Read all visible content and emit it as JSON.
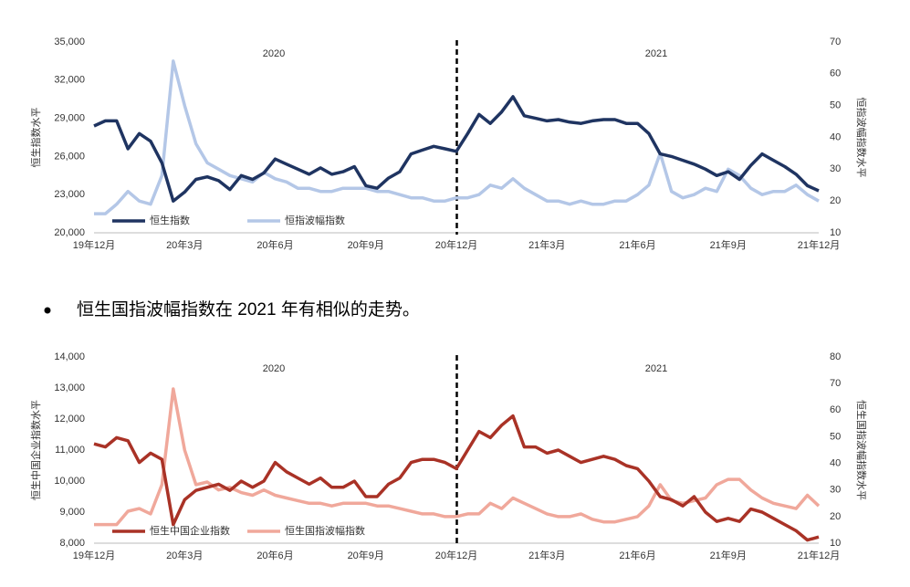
{
  "chart_data": [
    {
      "type": "line",
      "annotations": [
        "2020",
        "2021"
      ],
      "y_label": "恒生指数水平",
      "y2_label": "恒指波幅指数水平",
      "categories": [
        "19年12月",
        null,
        null,
        null,
        null,
        null,
        null,
        null,
        "20年3月",
        null,
        null,
        null,
        null,
        null,
        null,
        null,
        "20年6月",
        null,
        null,
        null,
        null,
        null,
        null,
        null,
        "20年9月",
        null,
        null,
        null,
        null,
        null,
        null,
        null,
        "20年12月",
        null,
        null,
        null,
        null,
        null,
        null,
        null,
        "21年3月",
        null,
        null,
        null,
        null,
        null,
        null,
        null,
        "21年6月",
        null,
        null,
        null,
        null,
        null,
        null,
        null,
        "21年9月",
        null,
        null,
        null,
        null,
        null,
        null,
        null,
        "21年12月"
      ],
      "series": [
        {
          "name": "恒生指数",
          "color": "#1f3461",
          "values": [
            28400,
            28800,
            28800,
            26600,
            27800,
            27200,
            25500,
            22500,
            23200,
            24200,
            24400,
            24100,
            23400,
            24500,
            24200,
            24700,
            25800,
            25400,
            25000,
            24600,
            25100,
            24600,
            24800,
            25200,
            23700,
            23500,
            24300,
            24800,
            26200,
            26500,
            26800,
            26600,
            26400,
            27800,
            29300,
            28600,
            29500,
            30700,
            29200,
            29000,
            28800,
            28900,
            28700,
            28600,
            28800,
            28900,
            28900,
            28600,
            28600,
            27800,
            26200,
            26000,
            25700,
            25400,
            25000,
            24500,
            24800,
            24200,
            25300,
            26200,
            25700,
            25200,
            24600,
            23700,
            23300
          ]
        },
        {
          "name": "恒指波幅指数",
          "color": "#b4c7e7",
          "axis": "y2",
          "values": [
            16,
            16,
            19,
            23,
            20,
            19,
            28,
            64,
            50,
            38,
            32,
            30,
            28,
            27,
            26,
            29,
            27,
            26,
            24,
            24,
            23,
            23,
            24,
            24,
            24,
            23,
            23,
            22,
            21,
            21,
            20,
            20,
            21,
            21,
            22,
            25,
            24,
            27,
            24,
            22,
            20,
            20,
            19,
            20,
            19,
            19,
            20,
            20,
            22,
            25,
            35,
            23,
            21,
            22,
            24,
            23,
            30,
            28,
            24,
            22,
            23,
            23,
            25,
            22,
            20
          ]
        }
      ],
      "ylim": [
        20000,
        35000
      ],
      "yticks": [
        {
          "value": 20000,
          "label": "20,000"
        },
        {
          "value": 23000,
          "label": "23,000"
        },
        {
          "value": 26000,
          "label": "26,000"
        },
        {
          "value": 29000,
          "label": "29,000"
        },
        {
          "value": 32000,
          "label": "32,000"
        },
        {
          "value": 35000,
          "label": "35,000"
        }
      ],
      "y2lim": [
        10,
        70
      ],
      "y2ticks": [
        10,
        20,
        30,
        40,
        50,
        60,
        70
      ]
    },
    {
      "type": "line",
      "annotations": [
        "2020",
        "2021"
      ],
      "y_label": "恒生中国企业指数水平",
      "y2_label": "恒生国指波幅指数水平",
      "categories": [
        "19年12月",
        null,
        null,
        null,
        null,
        null,
        null,
        null,
        "20年3月",
        null,
        null,
        null,
        null,
        null,
        null,
        null,
        "20年6月",
        null,
        null,
        null,
        null,
        null,
        null,
        null,
        "20年9月",
        null,
        null,
        null,
        null,
        null,
        null,
        null,
        "20年12月",
        null,
        null,
        null,
        null,
        null,
        null,
        null,
        "21年3月",
        null,
        null,
        null,
        null,
        null,
        null,
        null,
        "21年6月",
        null,
        null,
        null,
        null,
        null,
        null,
        null,
        "21年9月",
        null,
        null,
        null,
        null,
        null,
        null,
        null,
        "21年12月"
      ],
      "series": [
        {
          "name": "恒生中国企业指数",
          "color": "#a93226",
          "values": [
            11200,
            11100,
            11400,
            11300,
            10600,
            10900,
            10700,
            8600,
            9400,
            9700,
            9800,
            9900,
            9700,
            10000,
            9800,
            10000,
            10600,
            10300,
            10100,
            9900,
            10100,
            9800,
            9800,
            10000,
            9500,
            9500,
            9900,
            10100,
            10600,
            10700,
            10700,
            10600,
            10400,
            11000,
            11600,
            11400,
            11800,
            12100,
            11100,
            11100,
            10900,
            11000,
            10800,
            10600,
            10700,
            10800,
            10700,
            10500,
            10400,
            10000,
            9500,
            9400,
            9200,
            9500,
            9000,
            8700,
            8800,
            8700,
            9100,
            9000,
            8800,
            8600,
            8400,
            8100,
            8200
          ]
        },
        {
          "name": "恒生国指波幅指数",
          "color": "#f0a89b",
          "axis": "y2",
          "values": [
            17,
            17,
            17,
            22,
            23,
            21,
            32,
            68,
            45,
            32,
            33,
            30,
            31,
            29,
            28,
            30,
            28,
            27,
            26,
            25,
            25,
            24,
            25,
            25,
            25,
            24,
            24,
            23,
            22,
            21,
            21,
            20,
            20,
            21,
            21,
            25,
            23,
            27,
            25,
            23,
            21,
            20,
            20,
            21,
            19,
            18,
            18,
            19,
            20,
            24,
            32,
            26,
            25,
            26,
            27,
            32,
            34,
            34,
            30,
            27,
            25,
            24,
            23,
            28,
            24
          ]
        }
      ],
      "ylim": [
        8000,
        14000
      ],
      "yticks": [
        {
          "value": 8000,
          "label": "8,000"
        },
        {
          "value": 9000,
          "label": "9,000"
        },
        {
          "value": 10000,
          "label": "10,000"
        },
        {
          "value": 11000,
          "label": "11,000"
        },
        {
          "value": 12000,
          "label": "12,000"
        },
        {
          "value": 13000,
          "label": "13,000"
        },
        {
          "value": 14000,
          "label": "14,000"
        }
      ],
      "y2lim": [
        10,
        80
      ],
      "y2ticks": [
        10,
        20,
        30,
        40,
        50,
        60,
        70,
        80
      ]
    }
  ],
  "bullet": "恒生国指波幅指数在 2021 年有相似的走势。"
}
